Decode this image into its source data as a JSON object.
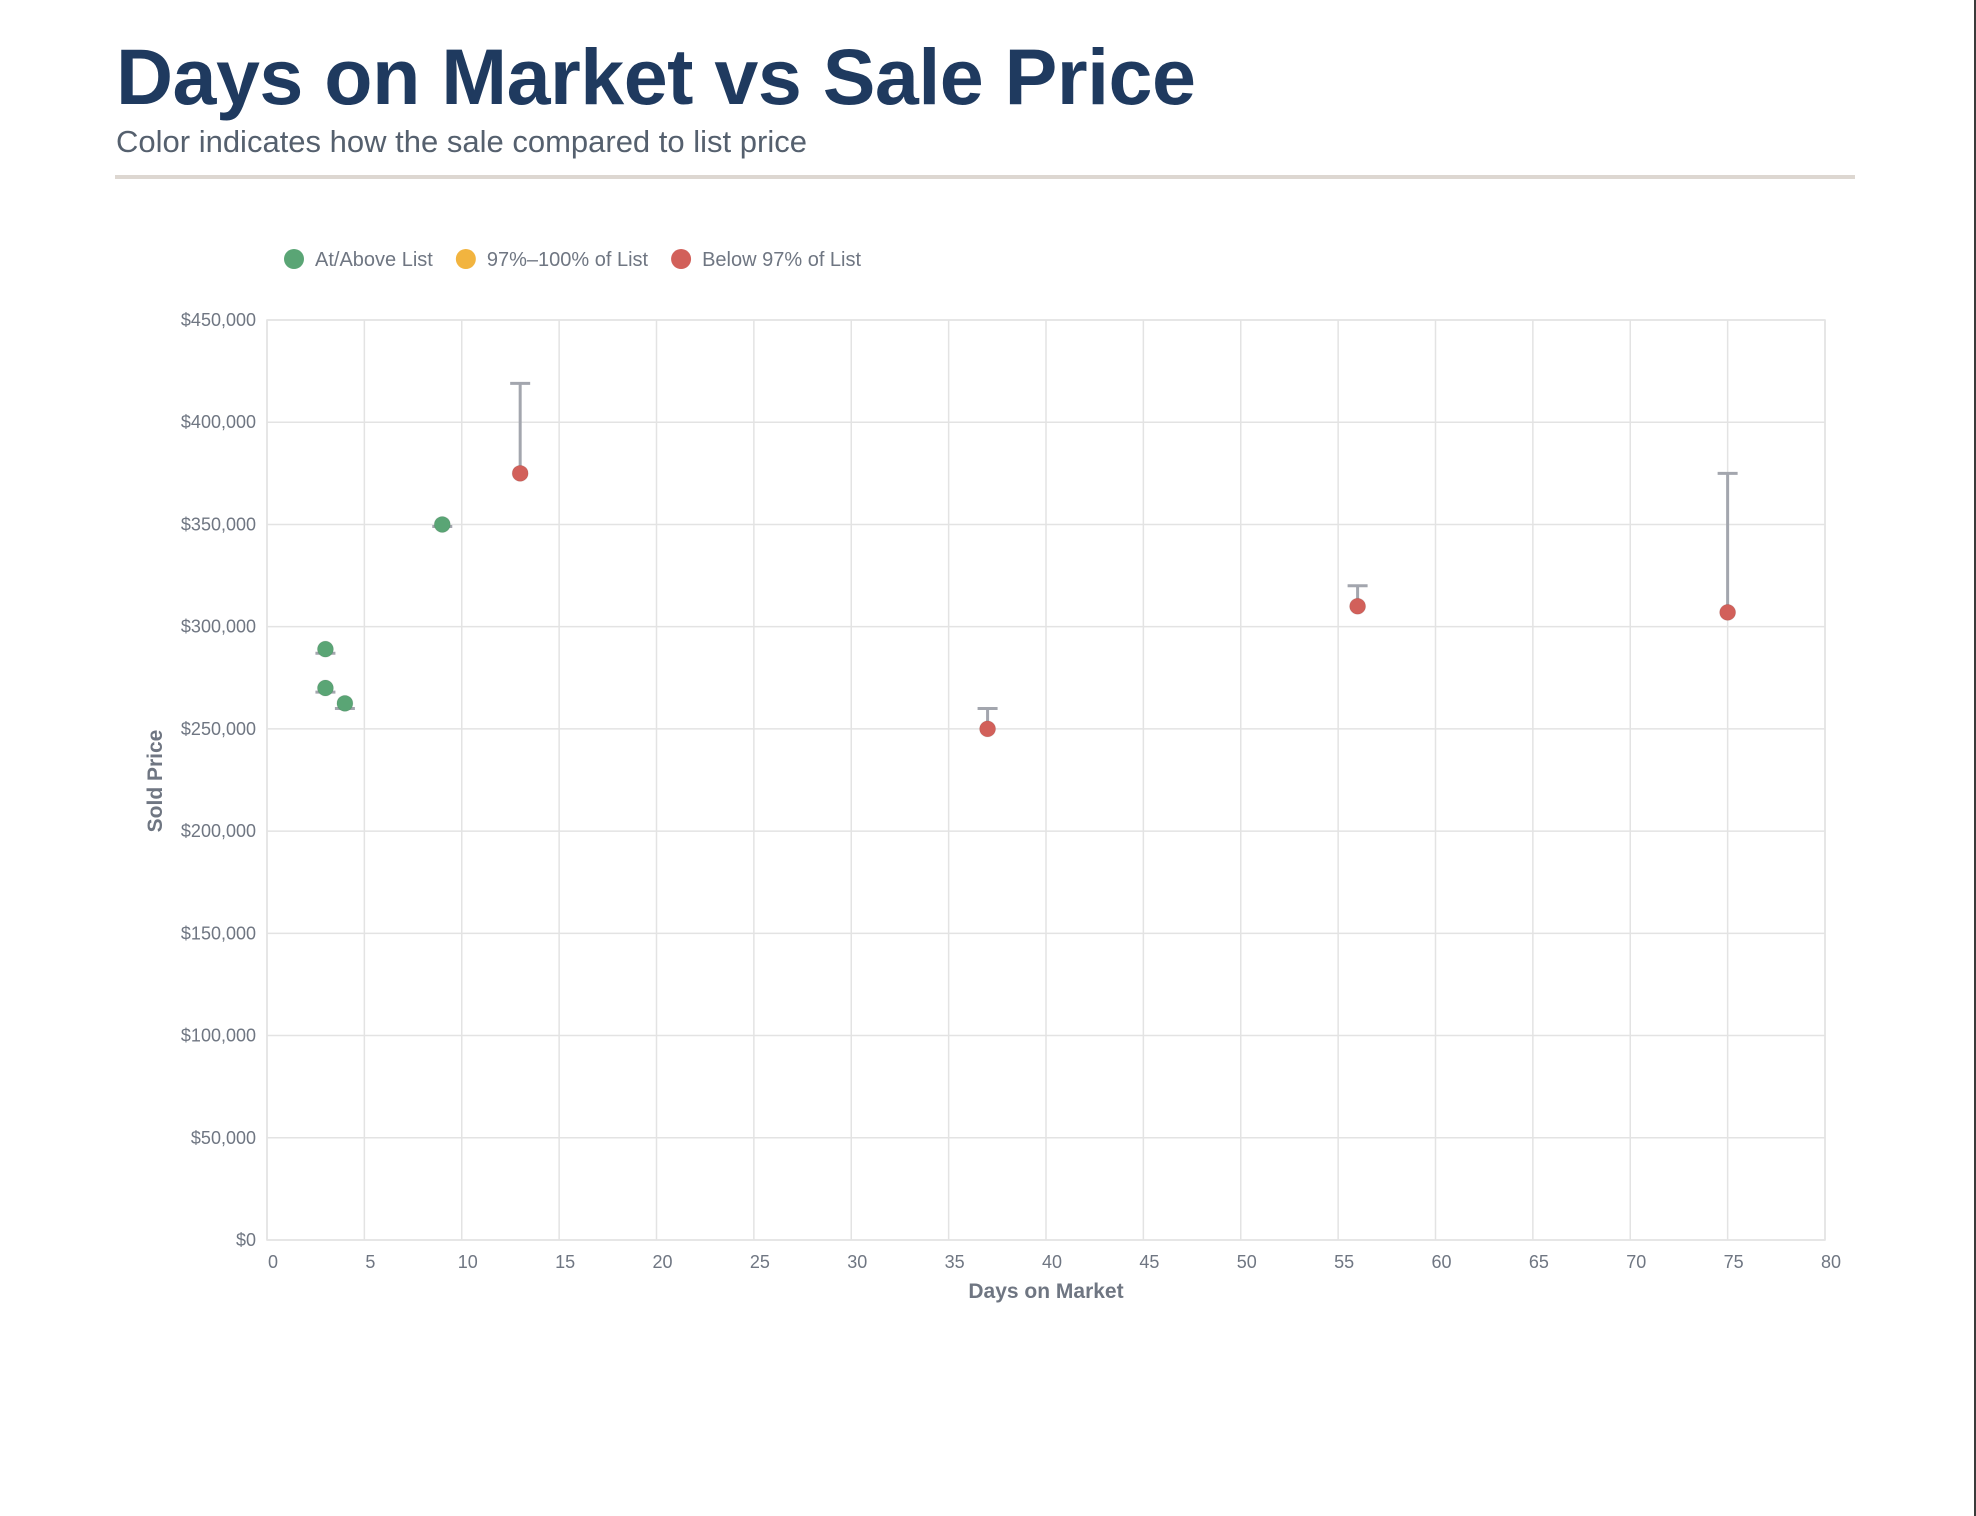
{
  "title": "Days on Market vs Sale Price",
  "subtitle": "Color indicates how the sale compared to list price",
  "colors": {
    "title": "#1f3a5f",
    "at_above": "#5aa575",
    "near_list": "#f2b43f",
    "below": "#d2605a",
    "whisker": "#a3a6ae",
    "grid": "#e3e3e3",
    "axis_text": "#6f7682"
  },
  "chart_data": {
    "type": "scatter",
    "xlabel": "Days on Market",
    "ylabel": "Sold Price",
    "xlim": [
      0,
      80
    ],
    "ylim": [
      0,
      450000
    ],
    "x_ticks": [
      0,
      5,
      10,
      15,
      20,
      25,
      30,
      35,
      40,
      45,
      50,
      55,
      60,
      65,
      70,
      75,
      80
    ],
    "y_ticks": [
      0,
      50000,
      100000,
      150000,
      200000,
      250000,
      300000,
      350000,
      400000,
      450000
    ],
    "y_tick_labels": [
      "$0",
      "$50,000",
      "$100,000",
      "$150,000",
      "$200,000",
      "$250,000",
      "$300,000",
      "$350,000",
      "$400,000",
      "$450,000"
    ],
    "grid": true,
    "legend_position": "top-left",
    "legend": [
      {
        "key": "at_above",
        "label": "At/Above List"
      },
      {
        "key": "near_list",
        "label": "97%–100% of List"
      },
      {
        "key": "below",
        "label": "Below 97% of List"
      }
    ],
    "points": [
      {
        "x": 3,
        "y": 289000,
        "list_price": 287000,
        "category": "at_above"
      },
      {
        "x": 3,
        "y": 270000,
        "list_price": 268000,
        "category": "at_above"
      },
      {
        "x": 4,
        "y": 262500,
        "list_price": 260000,
        "category": "at_above"
      },
      {
        "x": 9,
        "y": 350000,
        "list_price": 349000,
        "category": "at_above"
      },
      {
        "x": 13,
        "y": 375000,
        "list_price": 419000,
        "category": "below"
      },
      {
        "x": 37,
        "y": 250000,
        "list_price": 260000,
        "category": "below"
      },
      {
        "x": 56,
        "y": 310000,
        "list_price": 320000,
        "category": "below"
      },
      {
        "x": 75,
        "y": 307000,
        "list_price": 375000,
        "category": "below"
      }
    ]
  }
}
